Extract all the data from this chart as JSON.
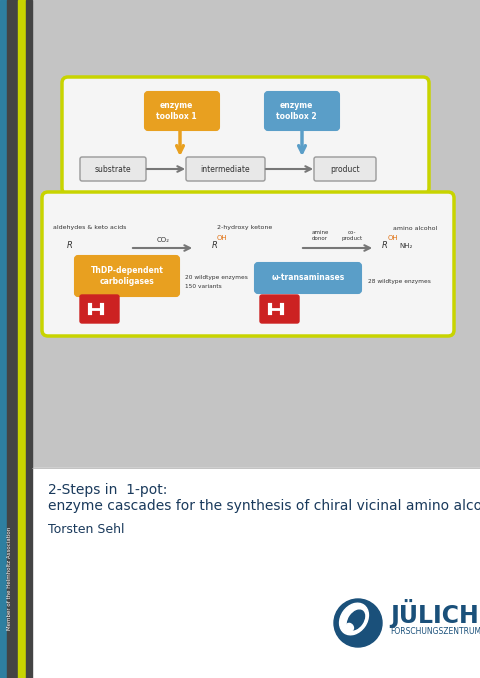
{
  "bg_color": "#c4c4c4",
  "white_panel_color": "#ffffff",
  "left_bar_color": "#444444",
  "left_bar2_color": "#c8d400",
  "left_teal_bar": "#2e7fa0",
  "title_line1": "2-Steps in  1-pot:",
  "title_line2": "enzyme cascades for the synthesis of chiral vicinal amino alcohols",
  "author": "Torsten Sehl",
  "title_color": "#1a3a5c",
  "helmholtz_text": "Member of the Helmholtz Association",
  "top_box_border_color": "#c8d400",
  "top_box_bg": "#f5f5f5",
  "bottom_box_border_color": "#c8d400",
  "bottom_box_bg": "#f5f5f5",
  "enzyme_box1_color": "#e8a020",
  "enzyme_box2_color": "#5a9ec8",
  "substrate_box_color": "#e8e8e8",
  "substrate_box_border": "#999999",
  "julich_blue": "#1a507a",
  "julich_text": "JÜLICH",
  "julich_sub": "FORSCHUNGSZENTRUM",
  "thDP_box_color": "#e8a020",
  "omega_box_color": "#5a9ec8",
  "toolbox_red": "#cc2222",
  "arrow_gray": "#777777",
  "arrow_yellow": "#e8a020",
  "arrow_blue": "#5a9ec8",
  "text_dark": "#333333",
  "chem_orange": "#e07010"
}
